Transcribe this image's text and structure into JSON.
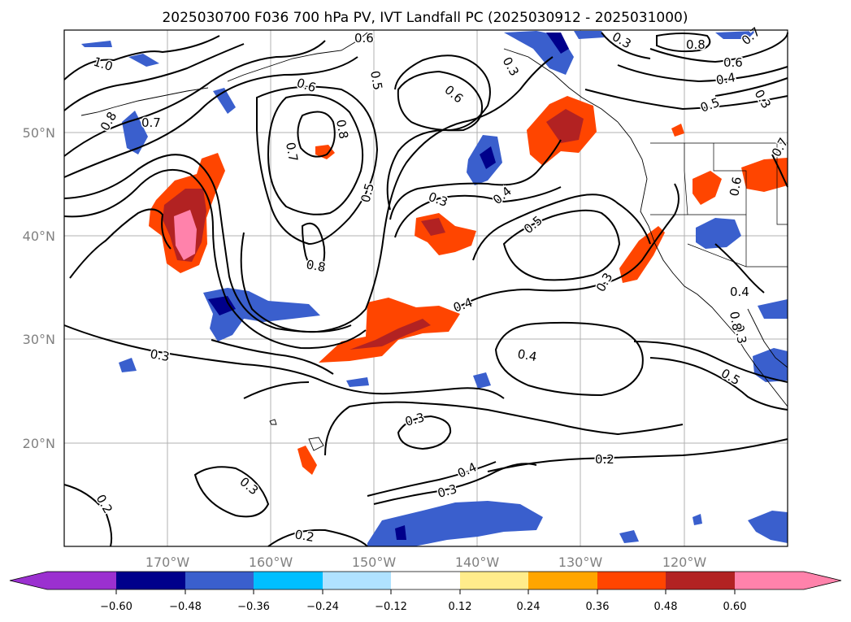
{
  "title": "2025030700 F036 700 hPa PV, IVT Landfall PC (2025030912 - 2025031000)",
  "lat_labels": [
    "50°N",
    "40°N",
    "30°N",
    "20°N"
  ],
  "lon_labels": [
    "170°W",
    "160°W",
    "150°W",
    "140°W",
    "130°W",
    "120°W"
  ],
  "colorbar": {
    "ticks": [
      "−0.60",
      "−0.48",
      "−0.36",
      "−0.24",
      "−0.12",
      "0.12",
      "0.24",
      "0.36",
      "0.48",
      "0.60"
    ],
    "colors": [
      "#9b30d0",
      "#00008b",
      "#3a5fcd",
      "#00bfff",
      "#b0e2ff",
      "#ffffff",
      "#ffec8b",
      "#ffa500",
      "#ff4500",
      "#b22222",
      "#ff82ab"
    ]
  },
  "contour_labels": [
    "1.0",
    "0.6",
    "0.5",
    "0.6",
    "0.8",
    "0.7",
    "0.5",
    "0.6",
    "0.7",
    "0.8",
    "0.8",
    "0.7",
    "0.6",
    "0.4",
    "0.3",
    "0.3",
    "0.8",
    "0.5",
    "0.3",
    "0.4",
    "0.5",
    "0.3",
    "0.6",
    "0.4",
    "0.3",
    "0.4",
    "0.5",
    "0.3",
    "0.4",
    "0.3",
    "0.2",
    "0.3",
    "0.2",
    "0.3",
    "0.4",
    "0.2",
    "0.3",
    "0.8",
    "0.7"
  ],
  "map_features": {
    "lat_lines": [
      50,
      40,
      30,
      20
    ],
    "lon_lines": [
      -170,
      -160,
      -150,
      -140,
      -130,
      -120
    ],
    "shading": "positive-negative PC anomaly",
    "contours": "700 hPa PV"
  }
}
